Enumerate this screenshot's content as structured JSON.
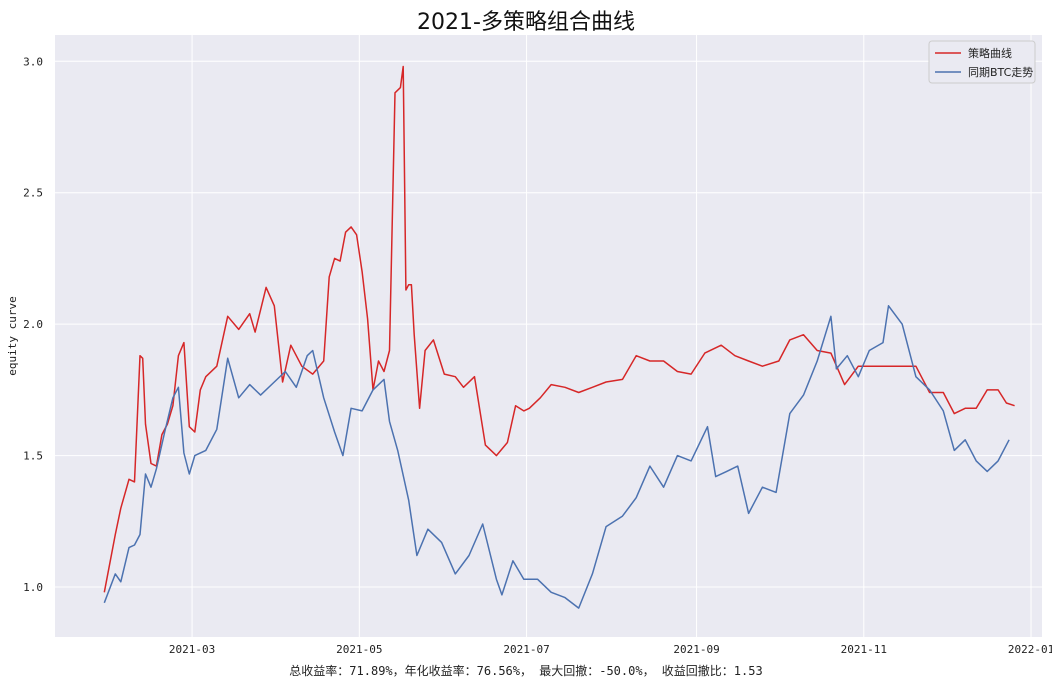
{
  "chart_data": {
    "type": "line",
    "title": "2021-多策略组合曲线",
    "xlabel": "总收益率：71.89%，年化收益率：76.56%， 最大回撤：-50.0%， 收益回撤比：1.53",
    "ylabel": "equity curve",
    "xlim": [
      "2021-01-10",
      "2022-01-05"
    ],
    "ylim": [
      0.81,
      3.1
    ],
    "x_ticks": [
      "2021-03",
      "2021-05",
      "2021-07",
      "2021-09",
      "2021-11",
      "2022-01"
    ],
    "x_tick_dates": [
      "2021-03-01",
      "2021-05-01",
      "2021-07-01",
      "2021-09-01",
      "2021-11-01",
      "2022-01-01"
    ],
    "y_ticks": [
      "1.0",
      "1.5",
      "2.0",
      "2.5",
      "3.0"
    ],
    "y_tick_values": [
      1.0,
      1.5,
      2.0,
      2.5,
      3.0
    ],
    "grid": true,
    "legend_position": "top-right",
    "colors": {
      "background": "#eaeaf2",
      "grid": "#ffffff"
    },
    "series": [
      {
        "name": "策略曲线",
        "color": "#d62728",
        "x": [
          "2021-01-28",
          "2021-02-01",
          "2021-02-03",
          "2021-02-06",
          "2021-02-08",
          "2021-02-10",
          "2021-02-11",
          "2021-02-12",
          "2021-02-14",
          "2021-02-16",
          "2021-02-18",
          "2021-02-20",
          "2021-02-22",
          "2021-02-24",
          "2021-02-26",
          "2021-02-28",
          "2021-03-02",
          "2021-03-04",
          "2021-03-06",
          "2021-03-10",
          "2021-03-14",
          "2021-03-18",
          "2021-03-22",
          "2021-03-24",
          "2021-03-28",
          "2021-03-31",
          "2021-04-03",
          "2021-04-06",
          "2021-04-10",
          "2021-04-14",
          "2021-04-18",
          "2021-04-20",
          "2021-04-22",
          "2021-04-24",
          "2021-04-26",
          "2021-04-28",
          "2021-04-30",
          "2021-05-02",
          "2021-05-04",
          "2021-05-06",
          "2021-05-08",
          "2021-05-10",
          "2021-05-12",
          "2021-05-14",
          "2021-05-16",
          "2021-05-17",
          "2021-05-18",
          "2021-05-19",
          "2021-05-20",
          "2021-05-21",
          "2021-05-23",
          "2021-05-25",
          "2021-05-28",
          "2021-06-01",
          "2021-06-05",
          "2021-06-08",
          "2021-06-12",
          "2021-06-16",
          "2021-06-20",
          "2021-06-24",
          "2021-06-27",
          "2021-06-30",
          "2021-07-02",
          "2021-07-06",
          "2021-07-10",
          "2021-07-15",
          "2021-07-20",
          "2021-07-25",
          "2021-07-30",
          "2021-08-05",
          "2021-08-10",
          "2021-08-15",
          "2021-08-20",
          "2021-08-25",
          "2021-08-30",
          "2021-09-04",
          "2021-09-10",
          "2021-09-15",
          "2021-09-20",
          "2021-09-25",
          "2021-10-01",
          "2021-10-05",
          "2021-10-10",
          "2021-10-15",
          "2021-10-20",
          "2021-10-25",
          "2021-10-30",
          "2021-11-05",
          "2021-11-10",
          "2021-11-15",
          "2021-11-20",
          "2021-11-25",
          "2021-11-30",
          "2021-12-04",
          "2021-12-08",
          "2021-12-12",
          "2021-12-16",
          "2021-12-20",
          "2021-12-23",
          "2021-12-26"
        ],
        "values": [
          0.98,
          1.2,
          1.3,
          1.41,
          1.4,
          1.88,
          1.87,
          1.62,
          1.47,
          1.46,
          1.58,
          1.62,
          1.69,
          1.88,
          1.93,
          1.61,
          1.59,
          1.75,
          1.8,
          1.84,
          2.03,
          1.98,
          2.04,
          1.97,
          2.14,
          2.07,
          1.78,
          1.92,
          1.84,
          1.81,
          1.86,
          2.18,
          2.25,
          2.24,
          2.35,
          2.37,
          2.34,
          2.2,
          2.02,
          1.75,
          1.86,
          1.82,
          1.9,
          2.88,
          2.9,
          2.98,
          2.13,
          2.15,
          2.15,
          1.96,
          1.68,
          1.9,
          1.94,
          1.81,
          1.8,
          1.76,
          1.8,
          1.54,
          1.5,
          1.55,
          1.69,
          1.67,
          1.68,
          1.72,
          1.77,
          1.76,
          1.74,
          1.76,
          1.78,
          1.79,
          1.88,
          1.86,
          1.86,
          1.82,
          1.81,
          1.89,
          1.92,
          1.88,
          1.86,
          1.84,
          1.86,
          1.94,
          1.96,
          1.9,
          1.89,
          1.77,
          1.84,
          1.84,
          1.84,
          1.84,
          1.84,
          1.74,
          1.74,
          1.66,
          1.68,
          1.68,
          1.75,
          1.75,
          1.7,
          1.69
        ]
      },
      {
        "name": "同期BTC走势",
        "color": "#4c72b0",
        "x": [
          "2021-01-28",
          "2021-02-01",
          "2021-02-03",
          "2021-02-06",
          "2021-02-08",
          "2021-02-10",
          "2021-02-12",
          "2021-02-14",
          "2021-02-16",
          "2021-02-19",
          "2021-02-22",
          "2021-02-24",
          "2021-02-26",
          "2021-02-28",
          "2021-03-02",
          "2021-03-06",
          "2021-03-10",
          "2021-03-14",
          "2021-03-18",
          "2021-03-22",
          "2021-03-26",
          "2021-03-31",
          "2021-04-04",
          "2021-04-08",
          "2021-04-12",
          "2021-04-14",
          "2021-04-18",
          "2021-04-22",
          "2021-04-25",
          "2021-04-28",
          "2021-05-02",
          "2021-05-06",
          "2021-05-10",
          "2021-05-12",
          "2021-05-15",
          "2021-05-19",
          "2021-05-22",
          "2021-05-26",
          "2021-05-31",
          "2021-06-05",
          "2021-06-10",
          "2021-06-15",
          "2021-06-20",
          "2021-06-22",
          "2021-06-26",
          "2021-06-30",
          "2021-07-05",
          "2021-07-10",
          "2021-07-15",
          "2021-07-20",
          "2021-07-25",
          "2021-07-30",
          "2021-08-05",
          "2021-08-10",
          "2021-08-15",
          "2021-08-20",
          "2021-08-25",
          "2021-08-30",
          "2021-09-05",
          "2021-09-08",
          "2021-09-12",
          "2021-09-16",
          "2021-09-20",
          "2021-09-25",
          "2021-09-30",
          "2021-10-05",
          "2021-10-10",
          "2021-10-15",
          "2021-10-20",
          "2021-10-22",
          "2021-10-26",
          "2021-10-30",
          "2021-11-03",
          "2021-11-08",
          "2021-11-10",
          "2021-11-15",
          "2021-11-20",
          "2021-11-25",
          "2021-11-30",
          "2021-12-04",
          "2021-12-08",
          "2021-12-12",
          "2021-12-16",
          "2021-12-20",
          "2021-12-24"
        ],
        "values": [
          0.94,
          1.05,
          1.02,
          1.15,
          1.16,
          1.2,
          1.43,
          1.38,
          1.45,
          1.59,
          1.72,
          1.76,
          1.51,
          1.43,
          1.5,
          1.52,
          1.6,
          1.87,
          1.72,
          1.77,
          1.73,
          1.78,
          1.82,
          1.76,
          1.88,
          1.9,
          1.72,
          1.59,
          1.5,
          1.68,
          1.67,
          1.75,
          1.79,
          1.63,
          1.52,
          1.33,
          1.12,
          1.22,
          1.17,
          1.05,
          1.12,
          1.24,
          1.03,
          0.97,
          1.1,
          1.03,
          1.03,
          0.98,
          0.96,
          0.92,
          1.05,
          1.23,
          1.27,
          1.34,
          1.46,
          1.38,
          1.5,
          1.48,
          1.61,
          1.42,
          1.44,
          1.46,
          1.28,
          1.38,
          1.36,
          1.66,
          1.73,
          1.86,
          2.03,
          1.83,
          1.88,
          1.8,
          1.9,
          1.93,
          2.07,
          2.0,
          1.8,
          1.75,
          1.67,
          1.52,
          1.56,
          1.48,
          1.44,
          1.48,
          1.56
        ]
      }
    ]
  }
}
